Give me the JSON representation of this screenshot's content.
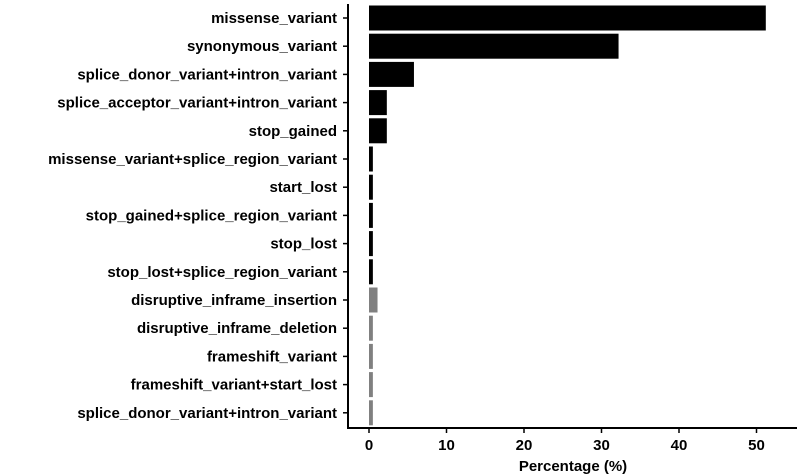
{
  "chart_data": {
    "type": "bar",
    "orientation": "horizontal",
    "title": "",
    "xlabel": "Percentage (%)",
    "ylabel": "",
    "xlim": [
      0,
      52.5
    ],
    "x_ticks": [
      "0",
      "10",
      "20",
      "30",
      "40",
      "50"
    ],
    "grid": false,
    "legend": "none",
    "categories": [
      "missense_variant",
      "synonymous_variant",
      "splice_donor_variant+intron_variant",
      "splice_acceptor_variant+intron_variant",
      "stop_gained",
      "missense_variant+splice_region_variant",
      "start_lost",
      "stop_gained+splice_region_variant",
      "stop_lost",
      "stop_lost+splice_region_variant",
      "disruptive_inframe_insertion",
      "disruptive_inframe_deletion",
      "frameshift_variant",
      "frameshift_variant+start_lost",
      "splice_donor_variant+intron_variant"
    ],
    "values": [
      51.2,
      32.2,
      5.8,
      2.3,
      2.3,
      0.5,
      0.5,
      0.5,
      0.5,
      0.5,
      1.1,
      0.5,
      0.5,
      0.5,
      0.5
    ],
    "bar_colors": [
      "#000000",
      "#000000",
      "#000000",
      "#000000",
      "#000000",
      "#000000",
      "#000000",
      "#000000",
      "#000000",
      "#000000",
      "#808080",
      "#808080",
      "#808080",
      "#808080",
      "#808080"
    ]
  }
}
